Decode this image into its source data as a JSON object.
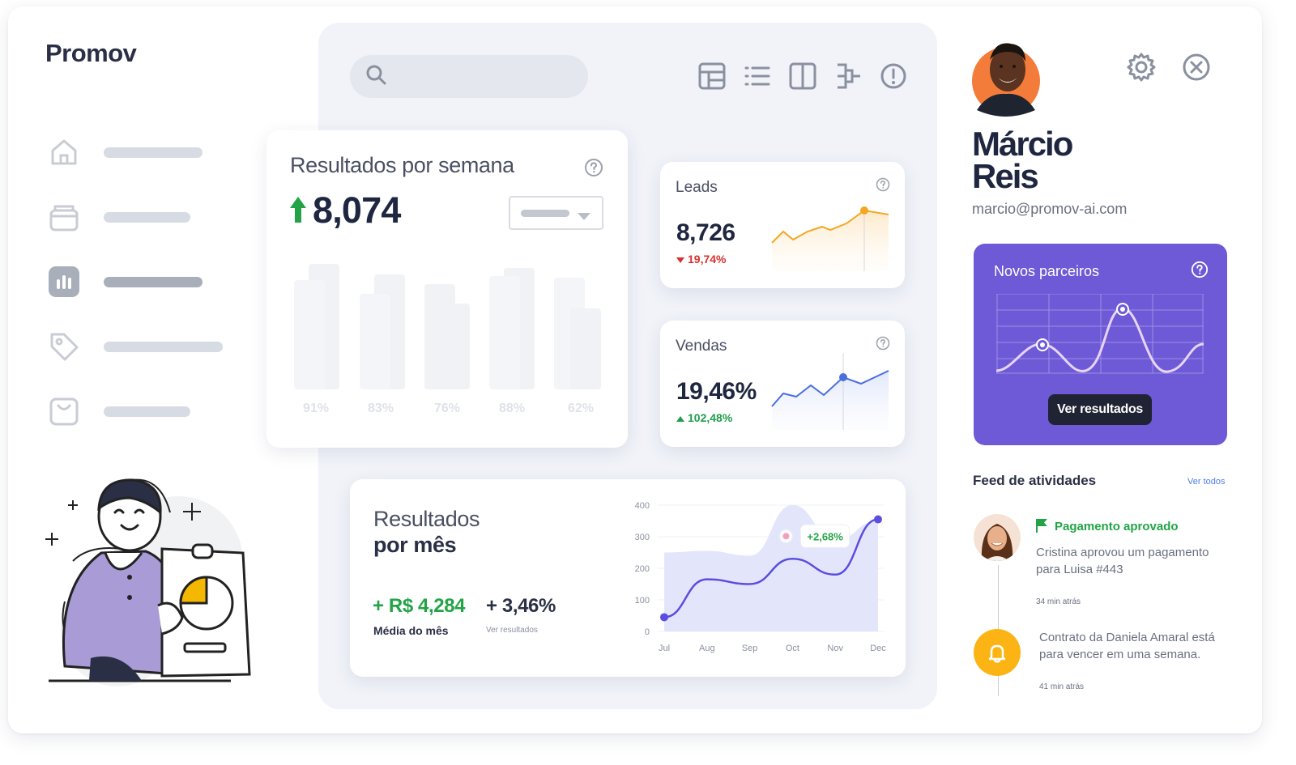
{
  "app": {
    "name": "Promov"
  },
  "sidebar": {
    "items": [
      {
        "icon": "home-icon"
      },
      {
        "icon": "archive-icon"
      },
      {
        "icon": "chart-icon",
        "active": true
      },
      {
        "icon": "tag-icon"
      },
      {
        "icon": "bag-icon"
      }
    ]
  },
  "toolbar": {
    "icons": [
      "table-icon",
      "list-icon",
      "columns-icon",
      "flow-icon",
      "alert-icon"
    ]
  },
  "weekly": {
    "title": "Resultados por semana",
    "value": "8,074",
    "bar_labels": [
      "91%",
      "83%",
      "76%",
      "88%",
      "62%"
    ]
  },
  "leads": {
    "label": "Leads",
    "value": "8,726",
    "change": "19,74%",
    "accent": "#f5a623"
  },
  "vendas": {
    "label": "Vendas",
    "value": "19,46%",
    "change": "102,48%",
    "accent": "#4a6ee0"
  },
  "monthly": {
    "title_line1": "Resultados",
    "title_line2": "por mês",
    "metric1_value": "+ R$ 4,284",
    "metric1_label": "Média do mês",
    "metric2_value": "+ 3,46%",
    "metric2_label": "Ver resultados",
    "tooltip": "+2,68%"
  },
  "chart_data": {
    "type": "line",
    "x": [
      "Jul",
      "Aug",
      "Sep",
      "Oct",
      "Nov",
      "Dec"
    ],
    "ylim": [
      0,
      400
    ],
    "yticks": [
      "400",
      "300",
      "200",
      "100",
      "0"
    ],
    "series": [
      {
        "values": [
          45,
          165,
          150,
          230,
          180,
          355
        ],
        "color": "#5b4ee0"
      }
    ],
    "area_values": [
      250,
      255,
      240,
      400,
      290,
      350
    ],
    "area_color": "#e3e6fb"
  },
  "profile": {
    "first_name": "Márcio",
    "last_name": "Reis",
    "email": "marcio@promov-ai.com"
  },
  "partners": {
    "label": "Novos parceiros",
    "button": "Ver resultados",
    "color": "#6e5ad6"
  },
  "feed": {
    "title": "Feed de atividades",
    "view_all": "Ver todos",
    "items": [
      {
        "title": "Pagamento aprovado",
        "text": "Cristina aprovou um pagamento para Luisa #443",
        "time": "34 min atrás"
      },
      {
        "text": "Contrato da Daniela Amaral está para vencer em uma semana.",
        "time": "41 min atrás"
      }
    ]
  }
}
